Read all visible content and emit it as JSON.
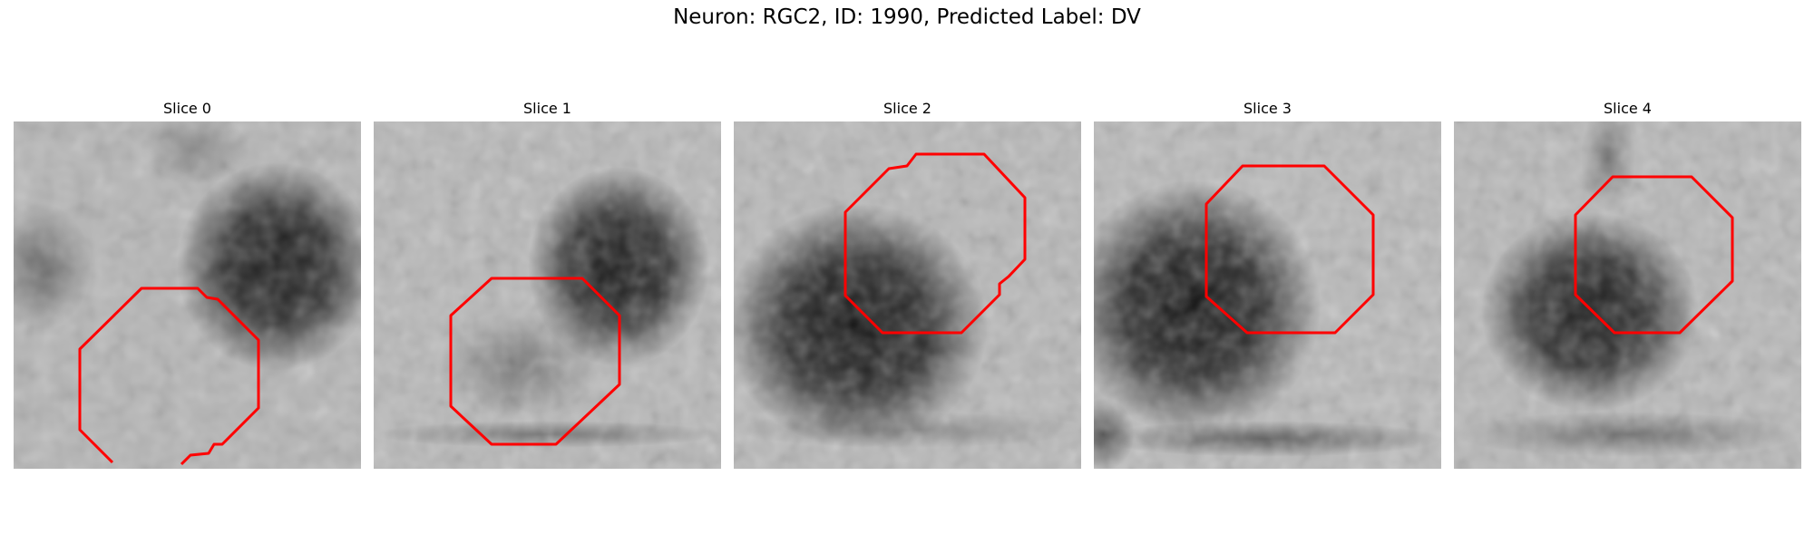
{
  "figure": {
    "title": "Neuron: RGC2, ID: 1990, Predicted Label: DV",
    "contour_color": "#ff0000",
    "panels": [
      {
        "title": "Slice 0"
      },
      {
        "title": "Slice 1"
      },
      {
        "title": "Slice 2"
      },
      {
        "title": "Slice 3"
      },
      {
        "title": "Slice 4"
      }
    ]
  }
}
